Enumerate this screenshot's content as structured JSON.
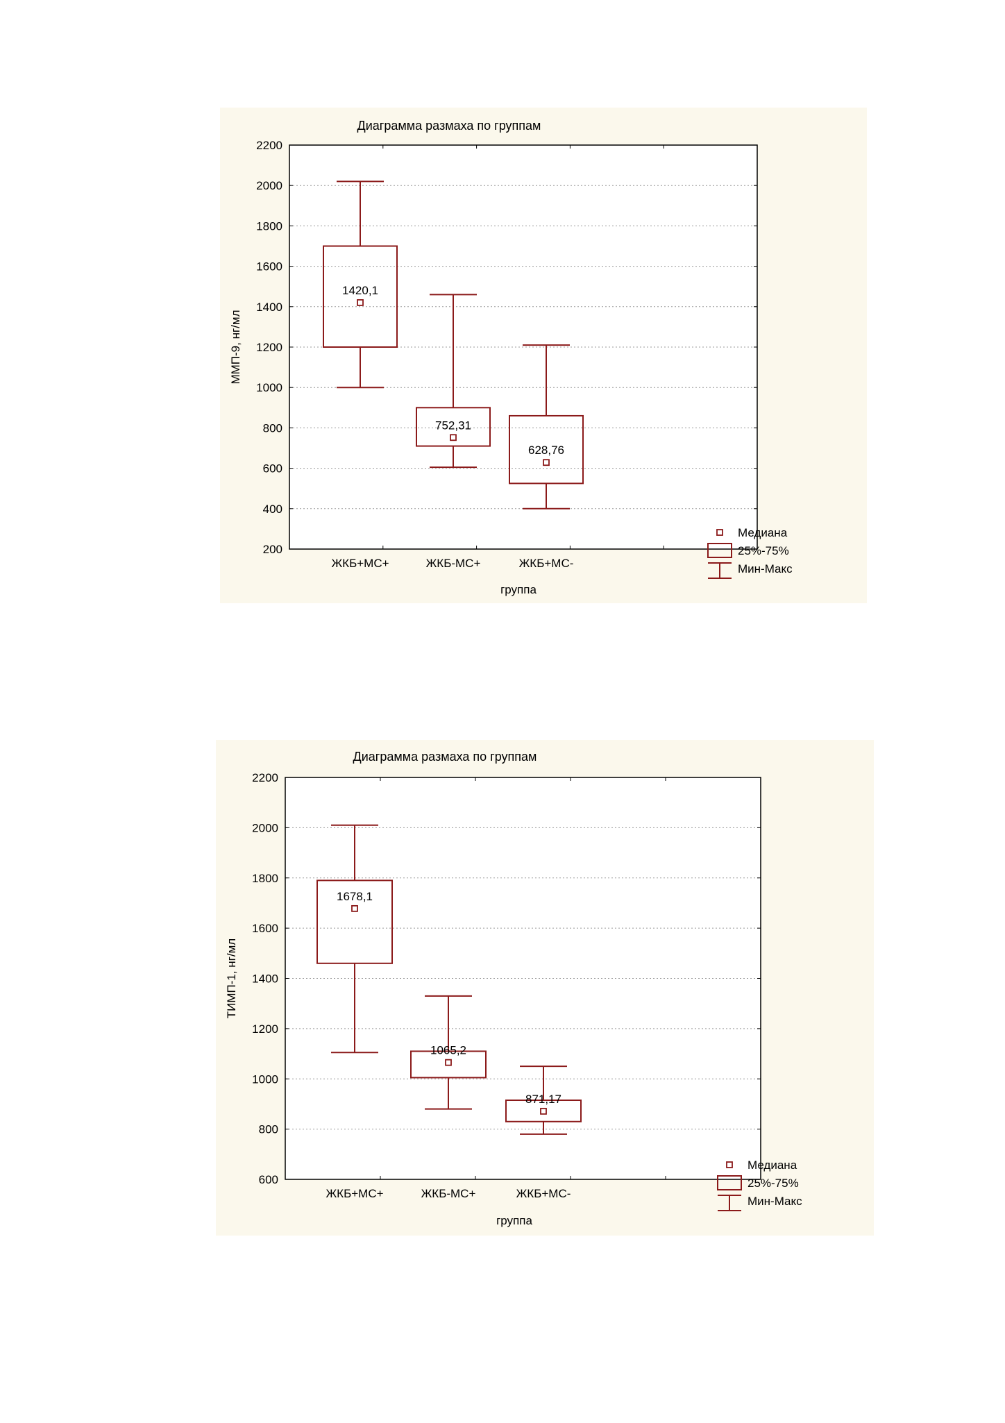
{
  "chart_data": [
    {
      "type": "boxplot",
      "title": "Диаграмма размаха по группам",
      "xlabel": "группа",
      "ylabel": "ММП-9, нг/мл",
      "ylim": [
        200,
        2200
      ],
      "yticks": [
        200,
        400,
        600,
        800,
        1000,
        1200,
        1400,
        1600,
        1800,
        2000,
        2200
      ],
      "grid": true,
      "categories": [
        "ЖКБ+МС+",
        "ЖКБ-МС+",
        "ЖКБ+МС-"
      ],
      "median_labels": [
        "1420,1",
        "752,31",
        "628,76"
      ],
      "boxes": [
        {
          "min": 1000,
          "q1": 1200,
          "median": 1420.1,
          "q3": 1700,
          "max": 2020
        },
        {
          "min": 605,
          "q1": 710,
          "median": 752.31,
          "q3": 900,
          "max": 1460
        },
        {
          "min": 400,
          "q1": 525,
          "median": 628.76,
          "q3": 860,
          "max": 1210
        }
      ],
      "legend": {
        "position": "bottom-right",
        "items": [
          "Медиана",
          "25%-75%",
          "Мин-Макс"
        ]
      },
      "color": "#8b1a1a"
    },
    {
      "type": "boxplot",
      "title": "Диаграмма размаха по группам",
      "xlabel": "группа",
      "ylabel": "ТИМП-1, нг/мл",
      "ylim": [
        600,
        2200
      ],
      "yticks": [
        600,
        800,
        1000,
        1200,
        1400,
        1600,
        1800,
        2000,
        2200
      ],
      "grid": true,
      "categories": [
        "ЖКБ+МС+",
        "ЖКБ-МС+",
        "ЖКБ+МС-"
      ],
      "median_labels": [
        "1678,1",
        "1065,2",
        "871,17"
      ],
      "boxes": [
        {
          "min": 1105,
          "q1": 1460,
          "median": 1678.1,
          "q3": 1790,
          "max": 2010
        },
        {
          "min": 880,
          "q1": 1005,
          "median": 1065.2,
          "q3": 1110,
          "max": 1330
        },
        {
          "min": 780,
          "q1": 830,
          "median": 871.17,
          "q3": 915,
          "max": 1050
        }
      ],
      "legend": {
        "position": "bottom-right",
        "items": [
          "Медиана",
          "25%-75%",
          "Мин-Макс"
        ]
      },
      "color": "#8b1a1a"
    }
  ]
}
